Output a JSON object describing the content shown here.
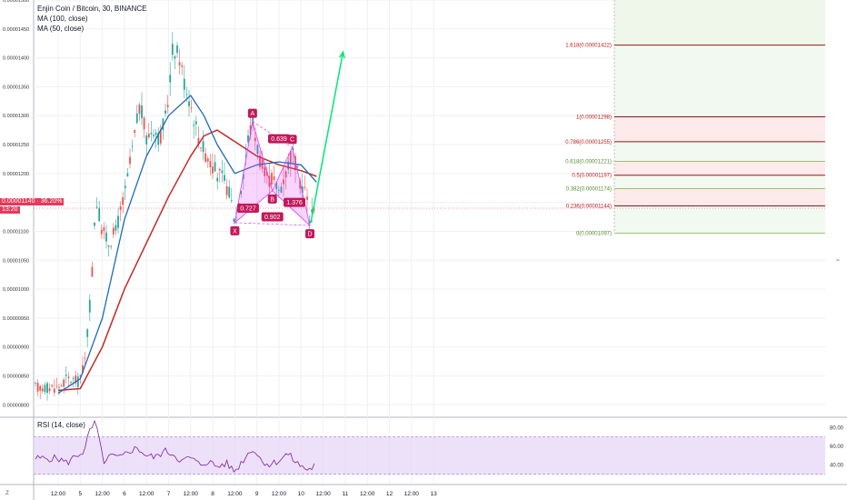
{
  "legend": {
    "title": "Enjin Coin / Bitcoin, 30, BINANCE",
    "ma100": "MA (100, close)",
    "ma50": "MA (50, close)"
  },
  "rsi_legend": "RSI (14, close)",
  "price_tag": {
    "price": "0.00001140",
    "change": "36.20%",
    "timer": "13:20"
  },
  "colors": {
    "bull": "#26a69a",
    "bear": "#ef5350",
    "ma100": "#c62828",
    "ma50": "#1e6ab5",
    "pattern": "#e040fb",
    "pattern_label": "#c2185b",
    "projection": "#00e676",
    "rsi": "#7b1fa2",
    "rsi_band": "#e6d4f7",
    "fib_green": "#e8f5e9",
    "fib_red": "#fde8e8",
    "fib_line": "#8b1a1a"
  },
  "chart_data": {
    "type": "candlestick",
    "symbol": "ENJBTC",
    "timeframe": "30",
    "exchange": "BINANCE",
    "y_axis_ticks": [
      "0.00001500",
      "0.00001450",
      "0.00001400",
      "0.00001350",
      "0.00001300",
      "0.00001250",
      "0.00001200",
      "0.00001150",
      "0.00001100",
      "0.00001050",
      "0.00001000",
      "0.00000950",
      "0.00000900",
      "0.00000850",
      "0.00000800"
    ],
    "x_axis_ticks": [
      "12:00",
      "5",
      "12:00",
      "6",
      "12:00",
      "7",
      "12:00",
      "8",
      "12:00",
      "9",
      "12:00",
      "10",
      "12:00",
      "11",
      "12:00",
      "12",
      "12:00",
      "13"
    ],
    "ylim": [
      7.8e-06,
      1.5e-05
    ],
    "close_path": [
      {
        "t": 0,
        "p": 8.3e-06
      },
      {
        "t": 0.2,
        "p": 8.45e-06
      },
      {
        "t": 0.45,
        "p": 8.4e-06
      },
      {
        "t": 0.6,
        "p": 8.7e-06
      },
      {
        "t": 0.75,
        "p": 1e-05
      },
      {
        "t": 0.85,
        "p": 1.16e-05
      },
      {
        "t": 1.0,
        "p": 1.1e-05
      },
      {
        "t": 1.15,
        "p": 1.08e-05
      },
      {
        "t": 1.3,
        "p": 1.1e-05
      },
      {
        "t": 1.5,
        "p": 1.16e-05
      },
      {
        "t": 1.7,
        "p": 1.25e-05
      },
      {
        "t": 1.85,
        "p": 1.32e-05
      },
      {
        "t": 2.0,
        "p": 1.26e-05
      },
      {
        "t": 2.15,
        "p": 1.28e-05
      },
      {
        "t": 2.3,
        "p": 1.26e-05
      },
      {
        "t": 2.45,
        "p": 1.3e-05
      },
      {
        "t": 2.6,
        "p": 1.42e-05
      },
      {
        "t": 2.75,
        "p": 1.4e-05
      },
      {
        "t": 2.85,
        "p": 1.36e-05
      },
      {
        "t": 3.0,
        "p": 1.32e-05
      },
      {
        "t": 3.15,
        "p": 1.27e-05
      },
      {
        "t": 3.3,
        "p": 1.24e-05
      },
      {
        "t": 3.45,
        "p": 1.22e-05
      },
      {
        "t": 3.6,
        "p": 1.2e-05
      },
      {
        "t": 3.75,
        "p": 1.19e-05
      },
      {
        "t": 3.9,
        "p": 1.16e-05
      },
      {
        "t": 4.0,
        "p": 1.12e-05
      },
      {
        "t": 4.15,
        "p": 1.18e-05
      },
      {
        "t": 4.3,
        "p": 1.26e-05
      },
      {
        "t": 4.4,
        "p": 1.29e-05
      },
      {
        "t": 4.55,
        "p": 1.23e-05
      },
      {
        "t": 4.7,
        "p": 1.19e-05
      },
      {
        "t": 4.85,
        "p": 1.19e-05
      },
      {
        "t": 5.0,
        "p": 1.17e-05
      },
      {
        "t": 5.15,
        "p": 1.2e-05
      },
      {
        "t": 5.3,
        "p": 1.24e-05
      },
      {
        "t": 5.45,
        "p": 1.19e-05
      },
      {
        "t": 5.6,
        "p": 1.17e-05
      },
      {
        "t": 5.7,
        "p": 1.12e-05
      },
      {
        "t": 5.85,
        "p": 1.16e-05
      }
    ],
    "ma100": [
      {
        "t": 0,
        "p": 8.25e-06
      },
      {
        "t": 0.5,
        "p": 8.28e-06
      },
      {
        "t": 1.0,
        "p": 9e-06
      },
      {
        "t": 1.5,
        "p": 1e-05
      },
      {
        "t": 2.0,
        "p": 1.08e-05
      },
      {
        "t": 2.5,
        "p": 1.16e-05
      },
      {
        "t": 3.0,
        "p": 1.23e-05
      },
      {
        "t": 3.3,
        "p": 1.265e-05
      },
      {
        "t": 3.6,
        "p": 1.275e-05
      },
      {
        "t": 4.0,
        "p": 1.255e-05
      },
      {
        "t": 4.5,
        "p": 1.23e-05
      },
      {
        "t": 5.0,
        "p": 1.215e-05
      },
      {
        "t": 5.5,
        "p": 1.205e-05
      },
      {
        "t": 5.85,
        "p": 1.195e-05
      }
    ],
    "ma50": [
      {
        "t": 0,
        "p": 8.2e-06
      },
      {
        "t": 0.5,
        "p": 8.45e-06
      },
      {
        "t": 1.0,
        "p": 9.5e-06
      },
      {
        "t": 1.5,
        "p": 1.12e-05
      },
      {
        "t": 2.0,
        "p": 1.23e-05
      },
      {
        "t": 2.5,
        "p": 1.3e-05
      },
      {
        "t": 3.0,
        "p": 1.335e-05
      },
      {
        "t": 3.3,
        "p": 1.3e-05
      },
      {
        "t": 3.6,
        "p": 1.25e-05
      },
      {
        "t": 4.0,
        "p": 1.2e-05
      },
      {
        "t": 4.5,
        "p": 1.215e-05
      },
      {
        "t": 5.0,
        "p": 1.22e-05
      },
      {
        "t": 5.5,
        "p": 1.215e-05
      },
      {
        "t": 5.85,
        "p": 1.185e-05
      }
    ],
    "harmonic_pattern": {
      "points": [
        {
          "label": "X",
          "t": 4.0,
          "p": 1.115e-05
        },
        {
          "label": "A",
          "t": 4.4,
          "p": 1.29e-05
        },
        {
          "label": "B",
          "t": 4.85,
          "p": 1.17e-05
        },
        {
          "label": "C",
          "t": 5.3,
          "p": 1.245e-05
        },
        {
          "label": "D",
          "t": 5.7,
          "p": 1.11e-05
        }
      ],
      "ratios": [
        {
          "label": "0.639",
          "t": 5.0,
          "p": 1.26e-05
        },
        {
          "label": "0.727",
          "t": 4.3,
          "p": 1.14e-05
        },
        {
          "label": "0.902",
          "t": 4.85,
          "p": 1.125e-05
        },
        {
          "label": "1.376",
          "t": 5.35,
          "p": 1.15e-05
        }
      ]
    },
    "projection": {
      "from": {
        "t": 5.72,
        "p": 1.115e-05
      },
      "to": {
        "t": 6.45,
        "p": 1.41e-05
      }
    },
    "fib_levels": [
      {
        "ratio": "1.618",
        "price": "0.00001422",
        "value": 1.422e-05,
        "label": "1.618(0.00001422)"
      },
      {
        "ratio": "1",
        "price": "0.00001298",
        "value": 1.298e-05,
        "label": "1(0.00001298)"
      },
      {
        "ratio": "0.786",
        "price": "0.00001255",
        "value": 1.255e-05,
        "label": "0.786(0.00001255)"
      },
      {
        "ratio": "0.618",
        "price": "0.00001221",
        "value": 1.221e-05,
        "label": "0.618(0.00001221)"
      },
      {
        "ratio": "0.5",
        "price": "0.00001197",
        "value": 1.197e-05,
        "label": "0.5(0.00001197)"
      },
      {
        "ratio": "0.382",
        "price": "0.00001174",
        "value": 1.174e-05,
        "label": "0.382(0.00001174)"
      },
      {
        "ratio": "0.236",
        "price": "0.00001144",
        "value": 1.144e-05,
        "label": "0.236(0.00001144)"
      },
      {
        "ratio": "0",
        "price": "0.00001097",
        "value": 1.097e-05,
        "label": "0(0.00001097)"
      }
    ],
    "rsi": {
      "ticks": [
        "80.00",
        "60.00",
        "40.00"
      ],
      "ylim": [
        20,
        90
      ],
      "band": [
        30,
        70
      ],
      "values": [
        {
          "t": 0,
          "v": 47
        },
        {
          "t": 0.2,
          "v": 42
        },
        {
          "t": 0.4,
          "v": 50
        },
        {
          "t": 0.6,
          "v": 55
        },
        {
          "t": 0.7,
          "v": 75
        },
        {
          "t": 0.85,
          "v": 86
        },
        {
          "t": 0.95,
          "v": 60
        },
        {
          "t": 1.05,
          "v": 42
        },
        {
          "t": 1.2,
          "v": 50
        },
        {
          "t": 1.4,
          "v": 47
        },
        {
          "t": 1.6,
          "v": 55
        },
        {
          "t": 1.8,
          "v": 58
        },
        {
          "t": 2.0,
          "v": 50
        },
        {
          "t": 2.2,
          "v": 48
        },
        {
          "t": 2.4,
          "v": 55
        },
        {
          "t": 2.6,
          "v": 52
        },
        {
          "t": 2.8,
          "v": 44
        },
        {
          "t": 3.0,
          "v": 48
        },
        {
          "t": 3.2,
          "v": 40
        },
        {
          "t": 3.4,
          "v": 44
        },
        {
          "t": 3.6,
          "v": 38
        },
        {
          "t": 3.8,
          "v": 42
        },
        {
          "t": 4.0,
          "v": 33
        },
        {
          "t": 4.2,
          "v": 46
        },
        {
          "t": 4.4,
          "v": 58
        },
        {
          "t": 4.6,
          "v": 45
        },
        {
          "t": 4.8,
          "v": 40
        },
        {
          "t": 5.0,
          "v": 45
        },
        {
          "t": 5.2,
          "v": 52
        },
        {
          "t": 5.4,
          "v": 42
        },
        {
          "t": 5.6,
          "v": 36
        },
        {
          "t": 5.7,
          "v": 35
        },
        {
          "t": 5.85,
          "v": 42
        }
      ]
    }
  }
}
